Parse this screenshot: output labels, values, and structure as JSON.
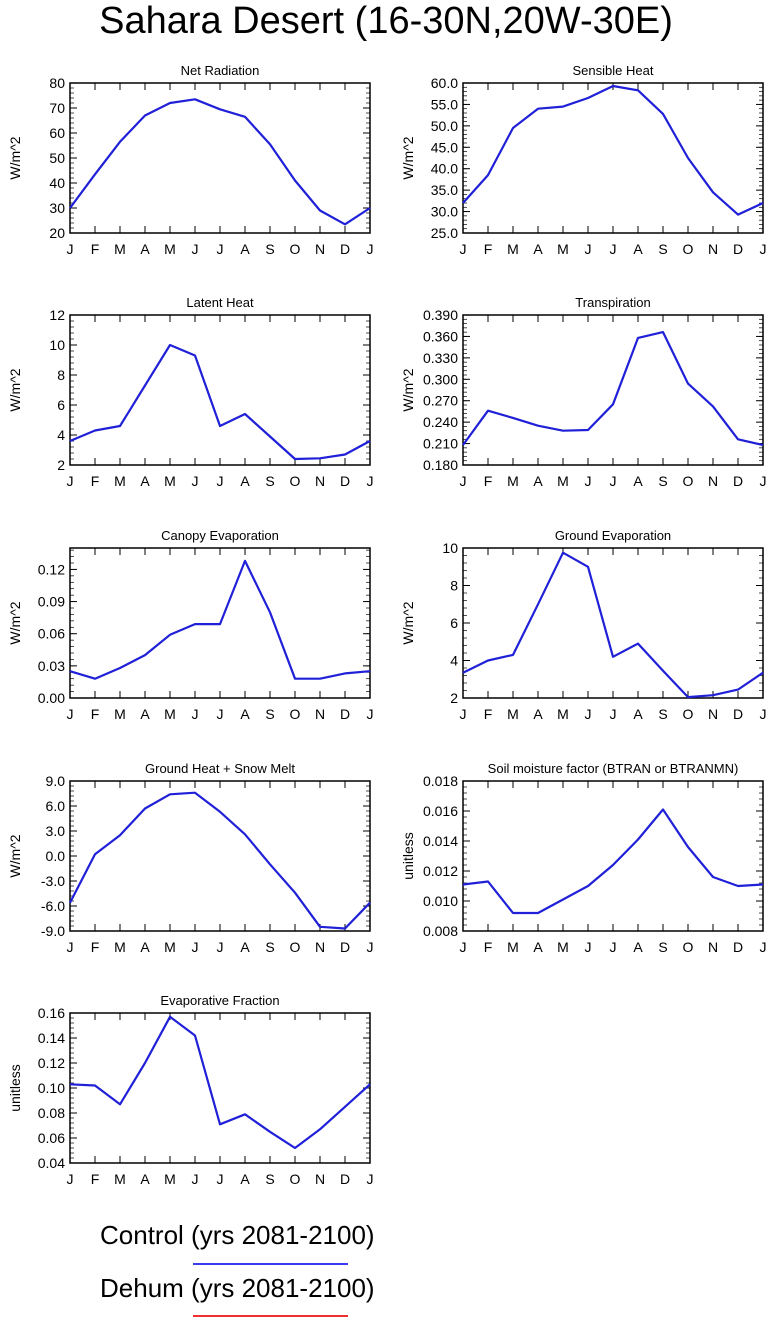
{
  "title": "Sahara Desert (16-30N,20W-30E)",
  "months": [
    "J",
    "F",
    "M",
    "A",
    "M",
    "J",
    "J",
    "A",
    "S",
    "O",
    "N",
    "D",
    "J"
  ],
  "legend": [
    {
      "label": "Control (yrs 2081-2100)",
      "color": "#3a3af0"
    },
    {
      "label": "Dehum (yrs 2081-2100)",
      "color": "#f03030"
    }
  ],
  "chart_data": [
    {
      "type": "line",
      "title": "Net Radiation",
      "ylabel": "W/m^2",
      "ylim": [
        20,
        80
      ],
      "yticks": [
        "20",
        "30",
        "40",
        "50",
        "60",
        "70",
        "80"
      ],
      "series": [
        {
          "color": "#2020d8",
          "values": [
            30,
            43.5,
            56.5,
            67,
            72,
            73.5,
            69.5,
            66.5,
            55.5,
            41,
            29,
            23.5,
            30
          ]
        }
      ]
    },
    {
      "type": "line",
      "title": "Sensible Heat",
      "ylabel": "W/m^2",
      "ylim": [
        25,
        60
      ],
      "yticks": [
        "25.0",
        "30.0",
        "35.0",
        "40.0",
        "45.0",
        "50.0",
        "55.0",
        "60.0"
      ],
      "series": [
        {
          "color": "#2020d8",
          "values": [
            32,
            38.5,
            49.5,
            54,
            54.5,
            56.5,
            59.3,
            58.3,
            52.8,
            42.5,
            34.5,
            29.3,
            32
          ]
        }
      ]
    },
    {
      "type": "line",
      "title": "Latent Heat",
      "ylabel": "W/m^2",
      "ylim": [
        2,
        12
      ],
      "yticks": [
        "2",
        "4",
        "6",
        "8",
        "10",
        "12"
      ],
      "series": [
        {
          "color": "#2020d8",
          "values": [
            3.6,
            4.3,
            4.6,
            7.3,
            10,
            9.3,
            4.6,
            5.4,
            3.9,
            2.4,
            2.45,
            2.7,
            3.6
          ]
        }
      ]
    },
    {
      "type": "line",
      "title": "Transpiration",
      "ylabel": "W/m^2",
      "ylim": [
        0.18,
        0.39
      ],
      "yticks": [
        "0.180",
        "0.210",
        "0.240",
        "0.270",
        "0.300",
        "0.330",
        "0.360",
        "0.390"
      ],
      "series": [
        {
          "color": "#2020d8",
          "values": [
            0.208,
            0.256,
            0.246,
            0.235,
            0.228,
            0.229,
            0.265,
            0.358,
            0.366,
            0.294,
            0.262,
            0.216,
            0.208
          ]
        }
      ]
    },
    {
      "type": "line",
      "title": "Canopy Evaporation",
      "ylabel": "W/m^2",
      "ylim": [
        0,
        0.14
      ],
      "yticks": [
        "0.00",
        "0.03",
        "0.06",
        "0.09",
        "0.12"
      ],
      "series": [
        {
          "color": "#2020d8",
          "values": [
            0.025,
            0.018,
            0.028,
            0.04,
            0.059,
            0.069,
            0.069,
            0.128,
            0.08,
            0.018,
            0.018,
            0.023,
            0.025
          ]
        }
      ]
    },
    {
      "type": "line",
      "title": "Ground Evaporation",
      "ylabel": "W/m^2",
      "ylim": [
        2,
        10
      ],
      "yticks": [
        "2",
        "4",
        "6",
        "8",
        "10"
      ],
      "series": [
        {
          "color": "#2020d8",
          "values": [
            3.35,
            4,
            4.3,
            7,
            9.75,
            9,
            4.2,
            4.9,
            3.45,
            2.05,
            2.15,
            2.45,
            3.35
          ]
        }
      ]
    },
    {
      "type": "line",
      "title": "Ground Heat + Snow Melt",
      "ylabel": "W/m^2",
      "ylim": [
        -9,
        9
      ],
      "yticks": [
        "-9.0",
        "-6.0",
        "-3.0",
        "0.0",
        "3.0",
        "6.0",
        "9.0"
      ],
      "series": [
        {
          "color": "#2020d8",
          "values": [
            -5.6,
            0.2,
            2.5,
            5.7,
            7.4,
            7.6,
            5.3,
            2.6,
            -1,
            -4.4,
            -8.5,
            -8.7,
            -5.6
          ]
        }
      ]
    },
    {
      "type": "line",
      "title": "Soil moisture factor (BTRAN or BTRANMN)",
      "ylabel": "unitless",
      "ylim": [
        0.008,
        0.018
      ],
      "yticks": [
        "0.008",
        "0.010",
        "0.012",
        "0.014",
        "0.016",
        "0.018"
      ],
      "series": [
        {
          "color": "#2020d8",
          "values": [
            0.0111,
            0.0113,
            0.0092,
            0.0092,
            0.0101,
            0.011,
            0.0124,
            0.0141,
            0.0161,
            0.0136,
            0.0116,
            0.011,
            0.0111
          ]
        }
      ]
    },
    {
      "type": "line",
      "title": "Evaporative Fraction",
      "ylabel": "unitless",
      "ylim": [
        0.04,
        0.16
      ],
      "yticks": [
        "0.04",
        "0.06",
        "0.08",
        "0.10",
        "0.12",
        "0.14",
        "0.16"
      ],
      "series": [
        {
          "color": "#2020d8",
          "values": [
            0.103,
            0.102,
            0.087,
            0.12,
            0.157,
            0.142,
            0.071,
            0.079,
            0.065,
            0.052,
            0.067,
            0.085,
            0.103
          ]
        }
      ]
    }
  ]
}
